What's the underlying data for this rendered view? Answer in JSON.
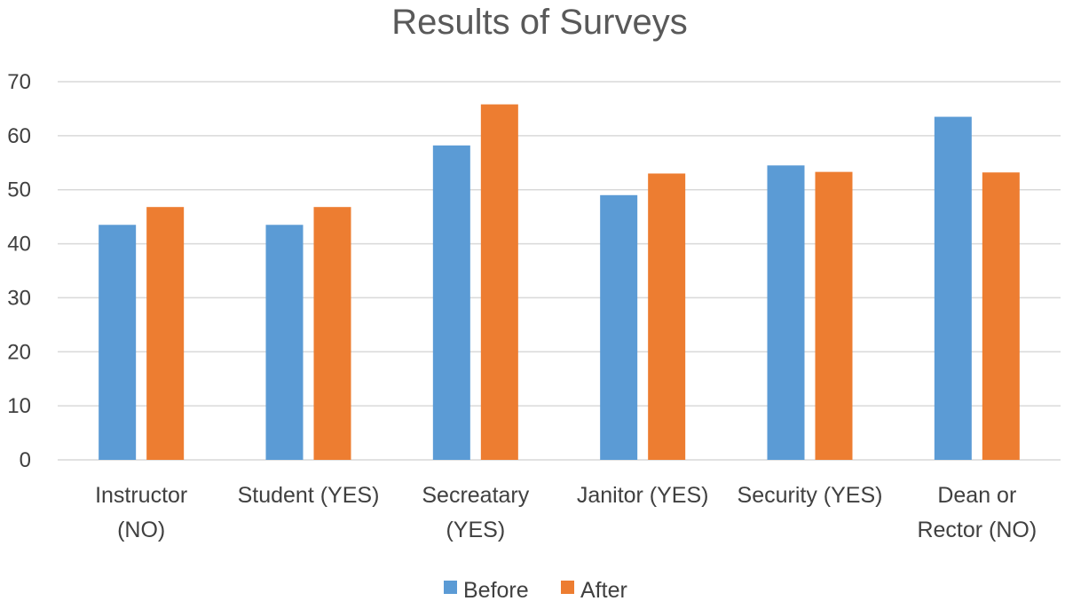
{
  "chart_data": {
    "type": "bar",
    "title": "Results of Surveys",
    "xlabel": "",
    "ylabel": "",
    "ylim": [
      0,
      70
    ],
    "y_ticks": [
      0,
      10,
      20,
      30,
      40,
      50,
      60,
      70
    ],
    "grid": "horizontal",
    "legend_position": "bottom",
    "categories": [
      [
        "Instructor",
        "(NO)"
      ],
      [
        "Student (YES)"
      ],
      [
        "Secreatary",
        "(YES)"
      ],
      [
        "Janitor (YES)"
      ],
      [
        "Security (YES)"
      ],
      [
        "Dean or",
        "Rector (NO)"
      ]
    ],
    "series": [
      {
        "name": "Before",
        "color": "#5B9BD5",
        "values": [
          43.5,
          43.5,
          58.2,
          49.0,
          54.5,
          63.5
        ]
      },
      {
        "name": "After",
        "color": "#ED7D31",
        "values": [
          46.8,
          46.8,
          65.8,
          53.0,
          53.3,
          53.2
        ]
      }
    ]
  }
}
